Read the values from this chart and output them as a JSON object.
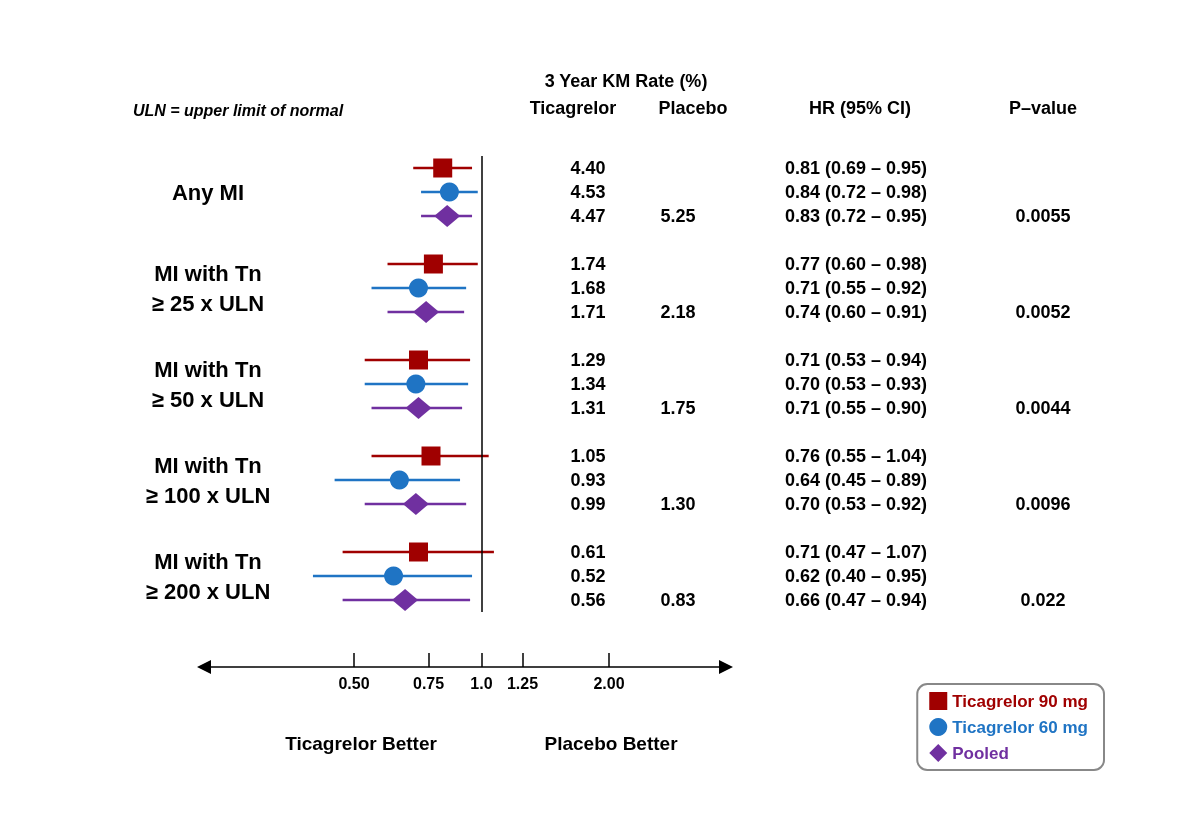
{
  "chart_data": {
    "type": "scatter",
    "orientation": "horizontal",
    "log": "x",
    "xlim": [
      0.22,
      3.8
    ],
    "xticks": [
      {
        "value": 0.5,
        "label": "0.50"
      },
      {
        "value": 0.75,
        "label": "0.75"
      },
      {
        "value": 1,
        "label": "1.0"
      },
      {
        "value": 1.25,
        "label": "1.25"
      },
      {
        "value": 2,
        "label": "2.00"
      }
    ],
    "categories": [
      null,
      "Any MI",
      null,
      null,
      null,
      "MI with Tn\n≥ 25 x ULN",
      null,
      null,
      null,
      "MI with Tn\n≥ 50 x ULN",
      null,
      null,
      null,
      "MI with Tn\n≥ 100 x ULN",
      null,
      null,
      null,
      "MI with Tn\n≥ 200 x ULN",
      null
    ],
    "series": [
      {
        "name": "Ticagrelor 90 mg",
        "color": "#a00000",
        "marker": "square",
        "values": [
          0.81,
          null,
          null,
          null,
          0.77,
          null,
          null,
          null,
          0.71,
          null,
          null,
          null,
          0.76,
          null,
          null,
          null,
          0.71,
          null,
          null
        ],
        "errors": [
          [
            0.69,
            0.95
          ],
          null,
          null,
          null,
          [
            0.6,
            0.98
          ],
          null,
          null,
          null,
          [
            0.53,
            0.94
          ],
          null,
          null,
          null,
          [
            0.55,
            1.04
          ],
          null,
          null,
          null,
          [
            0.47,
            1.07
          ],
          null,
          null
        ]
      },
      {
        "name": "Ticagrelor 60 mg",
        "color": "#1f74c4",
        "marker": "circle",
        "values": [
          null,
          0.84,
          null,
          null,
          null,
          0.71,
          null,
          null,
          null,
          0.7,
          null,
          null,
          null,
          0.64,
          null,
          null,
          null,
          0.62,
          null
        ],
        "errors": [
          null,
          [
            0.72,
            0.98
          ],
          null,
          null,
          null,
          [
            0.55,
            0.92
          ],
          null,
          null,
          null,
          [
            0.53,
            0.93
          ],
          null,
          null,
          null,
          [
            0.45,
            0.89
          ],
          null,
          null,
          null,
          [
            0.4,
            0.95
          ],
          null
        ]
      },
      {
        "name": "Pooled",
        "color": "#7030a0",
        "marker": "diamond",
        "values": [
          null,
          null,
          0.83,
          null,
          null,
          null,
          0.74,
          null,
          null,
          null,
          0.71,
          null,
          null,
          null,
          0.7,
          null,
          null,
          null,
          0.66
        ],
        "errors": [
          null,
          null,
          [
            0.72,
            0.95
          ],
          null,
          null,
          null,
          [
            0.6,
            0.91
          ],
          null,
          null,
          null,
          [
            0.55,
            0.9
          ],
          null,
          null,
          null,
          [
            0.53,
            0.92
          ],
          null,
          null,
          null,
          [
            0.47,
            0.94
          ]
        ]
      }
    ],
    "ref_lines": [
      {
        "axis": "x",
        "value": 1,
        "color": "#000000"
      }
    ],
    "legend": "bottom right",
    "grid": false,
    "annotations": [
      "ULN = upper limit of normal",
      "3 Year KM Rate (%)",
      "Ticagrelor",
      "Placebo",
      "HR (95% CI)",
      "P–value",
      "Ticagrelor Better",
      "Placebo Better",
      "4.40",
      "4.53",
      "4.47",
      "1.74",
      "1.68",
      "1.71",
      "1.29",
      "1.34",
      "1.31",
      "1.05",
      "0.93",
      "0.99",
      "0.61",
      "0.52",
      "0.56",
      "5.25",
      "2.18",
      "1.75",
      "1.30",
      "0.83",
      "0.0055",
      "0.0052",
      "0.0044",
      "0.0096",
      "0.022",
      "0.81 (0.69 – 0.95)",
      "0.84 (0.72 – 0.98)",
      "0.83 (0.72 – 0.95)",
      "0.77 (0.60 – 0.98)",
      "0.71 (0.55 – 0.92)",
      "0.74 (0.60 – 0.91)",
      "0.71 (0.53 – 0.94)",
      "0.70 (0.53 – 0.93)",
      "0.71 (0.55 – 0.90)",
      "0.76 (0.55 – 1.04)",
      "0.64 (0.45 – 0.89)",
      "0.70 (0.53 – 0.92)",
      "0.71 (0.47 – 1.07)",
      "0.62 (0.40 – 0.95)",
      "0.66 (0.47 – 0.94)"
    ]
  }
}
